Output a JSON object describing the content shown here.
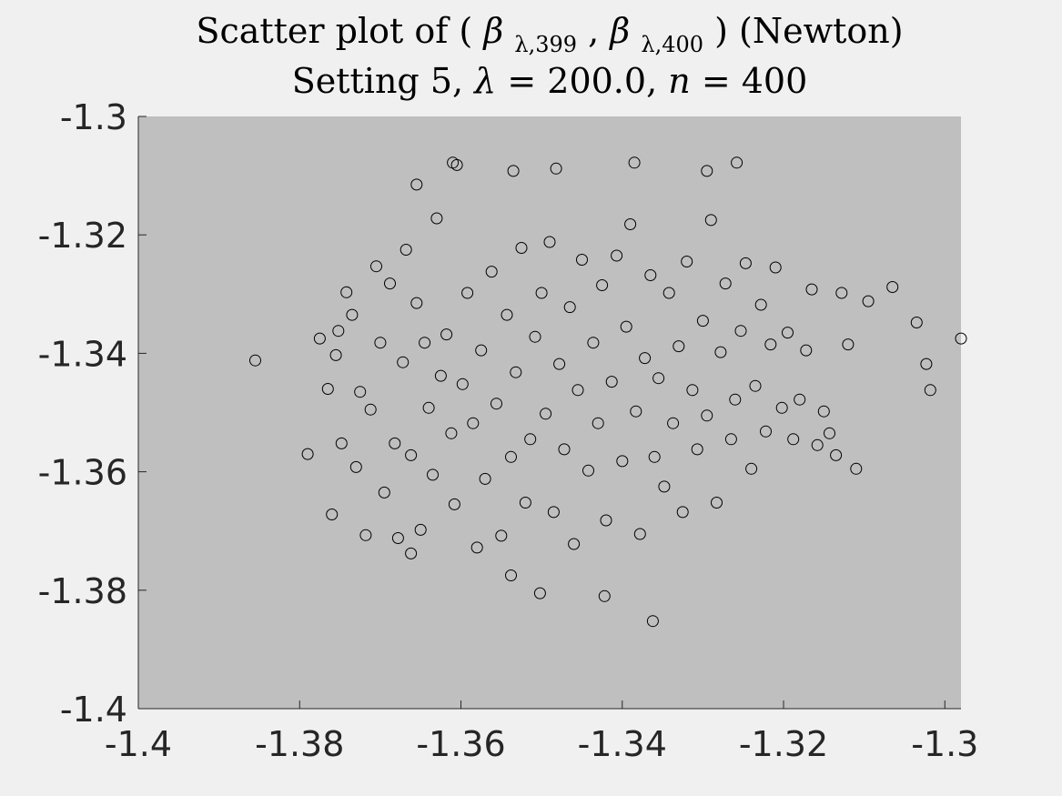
{
  "chart_data": {
    "type": "scatter",
    "title": "Scatter plot of (β̂λ,399, β̂λ,400) (Newton)",
    "title_parts": {
      "prefix": "Scatter plot of (",
      "beta": "β",
      "hat": "^",
      "sub1": "λ,399",
      "sep": ", ",
      "sub2": "λ,400",
      "suffix": ") (Newton)"
    },
    "subtitle": "Setting 5, λ = 200.0, n = 400",
    "subtitle_parts": {
      "prefix": "Setting 5, ",
      "lambda": "λ",
      "eq1": " = 200.0, ",
      "n": "n",
      "eq2": " = 400"
    },
    "xlim": [
      -1.4,
      -1.298
    ],
    "ylim": [
      -1.4,
      -1.3
    ],
    "xticks": [
      -1.4,
      -1.38,
      -1.36,
      -1.34,
      -1.32,
      -1.3
    ],
    "yticks": [
      -1.3,
      -1.32,
      -1.34,
      -1.36,
      -1.38,
      -1.4
    ],
    "xtick_labels": [
      "-1.4",
      "-1.38",
      "-1.36",
      "-1.34",
      "-1.32",
      "-1.3"
    ],
    "ytick_labels": [
      "-1.3",
      "-1.32",
      "-1.34",
      "-1.36",
      "-1.38",
      "-1.4"
    ],
    "grid": false,
    "axes_background": "#bfbfbf",
    "figure_background": "#f0f0f0",
    "marker_color": "#000000",
    "marker": "open-circle",
    "series": [
      {
        "x": [
          -1.3855,
          -1.379,
          -1.3775,
          -1.3765,
          -1.376,
          -1.3755,
          -1.3752,
          -1.3748,
          -1.3742,
          -1.3735,
          -1.373,
          -1.3725,
          -1.3718,
          -1.3712,
          -1.3705,
          -1.37,
          -1.3695,
          -1.3688,
          -1.3682,
          -1.3678,
          -1.3672,
          -1.3668,
          -1.3662,
          -1.3655,
          -1.365,
          -1.3645,
          -1.364,
          -1.3635,
          -1.363,
          -1.3625,
          -1.3618,
          -1.3612,
          -1.3608,
          -1.3605,
          -1.3598,
          -1.3592,
          -1.3585,
          -1.358,
          -1.3575,
          -1.357,
          -1.3562,
          -1.3556,
          -1.355,
          -1.3543,
          -1.3538,
          -1.3532,
          -1.3525,
          -1.352,
          -1.3514,
          -1.3508,
          -1.35,
          -1.3495,
          -1.349,
          -1.3485,
          -1.3478,
          -1.3472,
          -1.3465,
          -1.346,
          -1.3455,
          -1.345,
          -1.3442,
          -1.3436,
          -1.343,
          -1.3425,
          -1.342,
          -1.3413,
          -1.3407,
          -1.34,
          -1.3395,
          -1.339,
          -1.3383,
          -1.3378,
          -1.3372,
          -1.3365,
          -1.336,
          -1.3355,
          -1.3348,
          -1.3342,
          -1.3337,
          -1.333,
          -1.3325,
          -1.332,
          -1.3313,
          -1.3307,
          -1.33,
          -1.3295,
          -1.329,
          -1.3283,
          -1.3278,
          -1.3272,
          -1.3265,
          -1.326,
          -1.3253,
          -1.3247,
          -1.324,
          -1.3235,
          -1.3228,
          -1.3222,
          -1.3216,
          -1.321,
          -1.3202,
          -1.3195,
          -1.3188,
          -1.318,
          -1.3172,
          -1.3165,
          -1.3158,
          -1.315,
          -1.3143,
          -1.3135,
          -1.3128,
          -1.312,
          -1.311,
          -1.3095,
          -1.3065,
          -1.3035,
          -1.3023,
          -1.3018,
          -1.298,
          -1.3655,
          -1.361,
          -1.3535,
          -1.3482,
          -1.3385,
          -1.3295,
          -1.3258,
          -1.3662,
          -1.3538,
          -1.3502,
          -1.3422,
          -1.3362
        ],
        "y": [
          -1.3412,
          -1.357,
          -1.3375,
          -1.346,
          -1.3672,
          -1.3403,
          -1.3362,
          -1.3552,
          -1.3297,
          -1.3335,
          -1.3592,
          -1.3465,
          -1.3707,
          -1.3495,
          -1.3253,
          -1.3382,
          -1.3635,
          -1.3282,
          -1.3552,
          -1.3712,
          -1.3415,
          -1.3225,
          -1.3572,
          -1.3315,
          -1.3698,
          -1.3382,
          -1.3492,
          -1.3605,
          -1.3172,
          -1.3438,
          -1.3368,
          -1.3535,
          -1.3655,
          -1.3082,
          -1.3452,
          -1.3298,
          -1.3518,
          -1.3728,
          -1.3395,
          -1.3612,
          -1.3262,
          -1.3485,
          -1.3708,
          -1.3335,
          -1.3575,
          -1.3432,
          -1.3222,
          -1.3652,
          -1.3545,
          -1.3372,
          -1.3298,
          -1.3502,
          -1.3212,
          -1.3668,
          -1.3418,
          -1.3562,
          -1.3322,
          -1.3722,
          -1.3462,
          -1.3242,
          -1.3598,
          -1.3382,
          -1.3518,
          -1.3285,
          -1.3682,
          -1.3448,
          -1.3235,
          -1.3582,
          -1.3355,
          -1.3182,
          -1.3498,
          -1.3705,
          -1.3408,
          -1.3268,
          -1.3575,
          -1.3442,
          -1.3625,
          -1.3298,
          -1.3518,
          -1.3388,
          -1.3668,
          -1.3245,
          -1.3462,
          -1.3562,
          -1.3345,
          -1.3505,
          -1.3175,
          -1.3652,
          -1.3398,
          -1.3282,
          -1.3545,
          -1.3478,
          -1.3362,
          -1.3248,
          -1.3595,
          -1.3455,
          -1.3318,
          -1.3532,
          -1.3385,
          -1.3255,
          -1.3492,
          -1.3365,
          -1.3545,
          -1.3478,
          -1.3395,
          -1.3292,
          -1.3555,
          -1.3498,
          -1.3535,
          -1.3572,
          -1.3298,
          -1.3385,
          -1.3595,
          -1.3312,
          -1.3288,
          -1.3348,
          -1.3418,
          -1.3462,
          -1.3375,
          -1.3115,
          -1.3078,
          -1.3092,
          -1.3088,
          -1.3078,
          -1.3092,
          -1.3078,
          -1.3738,
          -1.3775,
          -1.3805,
          -1.381,
          -1.3852
        ]
      }
    ]
  }
}
